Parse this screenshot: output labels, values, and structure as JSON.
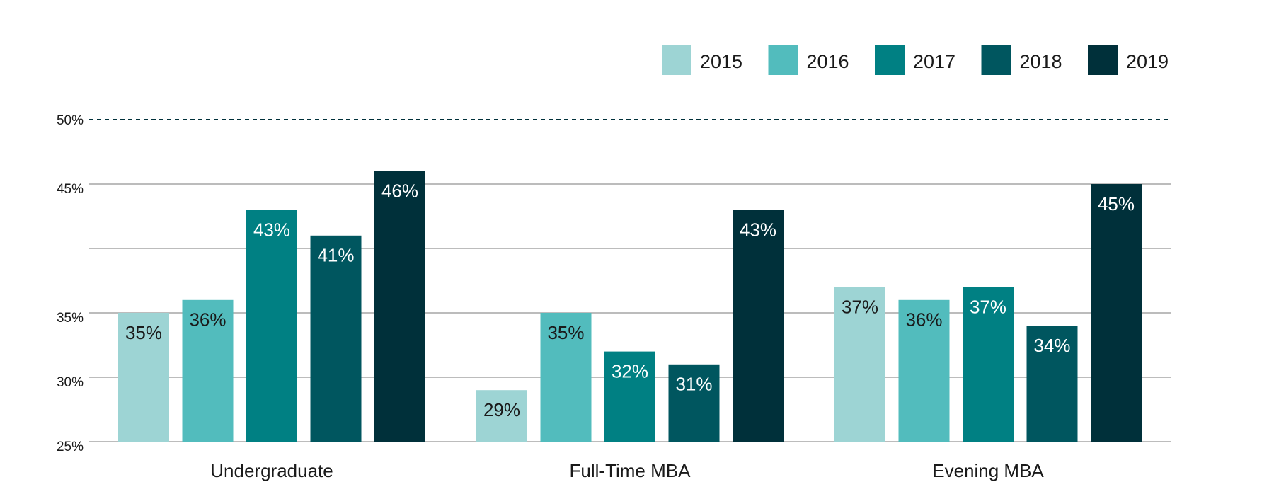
{
  "chart_data": {
    "type": "bar",
    "categories": [
      "Undergraduate",
      "Full-Time MBA",
      "Evening MBA"
    ],
    "series": [
      {
        "name": "2015",
        "color": "#9dd4d4",
        "label_color": "#1a1a1a",
        "values": [
          35,
          29,
          37
        ],
        "value_labels": [
          "35%",
          "29%",
          "37%"
        ]
      },
      {
        "name": "2016",
        "color": "#52bcbd",
        "label_color": "#1a1a1a",
        "values": [
          36,
          35,
          36
        ],
        "value_labels": [
          "36%",
          "35%",
          "36%"
        ]
      },
      {
        "name": "2017",
        "color": "#008083",
        "label_color": "#ffffff",
        "values": [
          43,
          32,
          37
        ],
        "value_labels": [
          "43%",
          "32%",
          "37%"
        ]
      },
      {
        "name": "2018",
        "color": "#00565f",
        "label_color": "#ffffff",
        "values": [
          41,
          31,
          34
        ],
        "value_labels": [
          "41%",
          "31%",
          "34%"
        ]
      },
      {
        "name": "2019",
        "color": "#00303a",
        "label_color": "#ffffff",
        "values": [
          46,
          43,
          45
        ],
        "value_labels": [
          "46%",
          "43%",
          "45%"
        ]
      }
    ],
    "ylim": [
      25,
      50
    ],
    "yticks": [
      {
        "value": 25,
        "label": "25%"
      },
      {
        "value": 30,
        "label": "30%"
      },
      {
        "value": 35,
        "label": "35%"
      },
      {
        "value": 40,
        "label": null
      },
      {
        "value": 45,
        "label": "45%"
      },
      {
        "value": 50,
        "label": "50%"
      }
    ],
    "grid": true,
    "legend": "top-right"
  }
}
